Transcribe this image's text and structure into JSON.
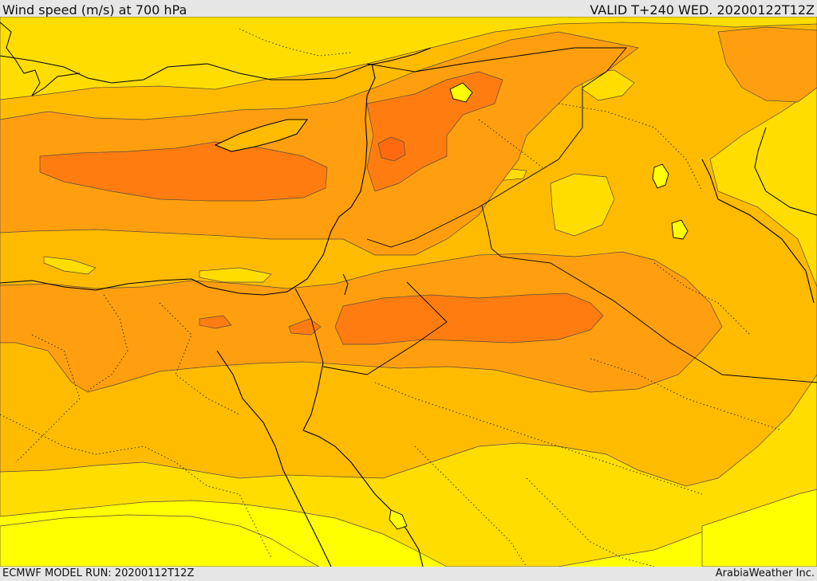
{
  "header": {
    "title": "Wind speed (m/s) at 700 hPa",
    "valid": "VALID T+240 WED. 20200122T12Z"
  },
  "footer": {
    "model_run": "ECMWF MODEL RUN: 20200112T12Z",
    "credit": "ArabiaWeather Inc."
  },
  "map": {
    "region": "Eastern Mediterranean and Middle East",
    "field": "Wind speed at 700 hPa",
    "colors": {
      "band_lowest": "#ffff00",
      "band_low": "#ffdd00",
      "band_mid": "#ffbb00",
      "band_high": "#ff9f0f",
      "band_highest": "#ff7d10",
      "band_peak": "#ff6a10",
      "contour": "#5a4a3a",
      "coastline": "#000000",
      "border_dotted": "#222222"
    }
  }
}
